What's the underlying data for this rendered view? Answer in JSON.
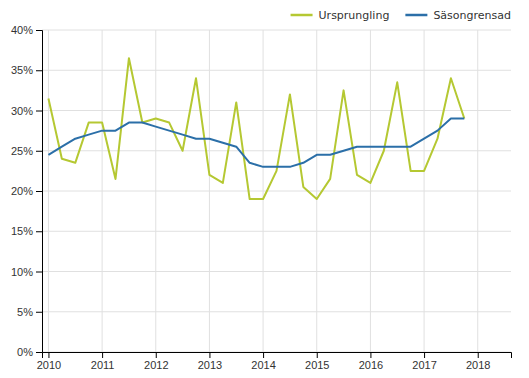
{
  "chart_data": {
    "type": "line",
    "x": [
      2010,
      2010.25,
      2010.5,
      2010.75,
      2011,
      2011.25,
      2011.5,
      2011.75,
      2012,
      2012.25,
      2012.5,
      2012.75,
      2013,
      2013.25,
      2013.5,
      2013.75,
      2014,
      2014.25,
      2014.5,
      2014.75,
      2015,
      2015.25,
      2015.5,
      2015.75,
      2016,
      2016.25,
      2016.5,
      2016.75,
      2017,
      2017.25,
      2017.5,
      2017.75
    ],
    "series": [
      {
        "name": "Ursprungling",
        "color": "#b5c832",
        "values": [
          31.5,
          24.0,
          23.5,
          28.5,
          28.5,
          21.5,
          36.5,
          28.5,
          29.0,
          28.5,
          25.0,
          34.0,
          22.0,
          21.0,
          31.0,
          19.0,
          19.0,
          22.5,
          32.0,
          20.5,
          19.0,
          21.5,
          32.5,
          22.0,
          21.0,
          25.0,
          33.5,
          22.5,
          22.5,
          26.5,
          34.0,
          29.0
        ]
      },
      {
        "name": "Säsongrensad",
        "color": "#2b6fa8",
        "values": [
          24.5,
          25.5,
          26.5,
          27.0,
          27.5,
          27.5,
          28.5,
          28.5,
          28.0,
          27.5,
          27.0,
          26.5,
          26.5,
          26.0,
          25.5,
          23.5,
          23.0,
          23.0,
          23.0,
          23.5,
          24.5,
          24.5,
          25.0,
          25.5,
          25.5,
          25.5,
          25.5,
          25.5,
          26.5,
          27.5,
          29.0,
          29.0
        ]
      }
    ],
    "xlim": [
      2009.88,
      2018.62
    ],
    "xticks": [
      2010,
      2011,
      2012,
      2013,
      2014,
      2015,
      2016,
      2017,
      2018
    ],
    "ylim": [
      0,
      40
    ],
    "yticks": [
      {
        "value": 0,
        "label": "0%"
      },
      {
        "value": 5,
        "label": "5%"
      },
      {
        "value": 10,
        "label": "10%"
      },
      {
        "value": 15,
        "label": "15%"
      },
      {
        "value": 20,
        "label": "20%"
      },
      {
        "value": 25,
        "label": "25%"
      },
      {
        "value": 30,
        "label": "30%"
      },
      {
        "value": 35,
        "label": "35%"
      },
      {
        "value": 40,
        "label": "40%"
      }
    ],
    "grid": true,
    "legend": "upper-right"
  }
}
